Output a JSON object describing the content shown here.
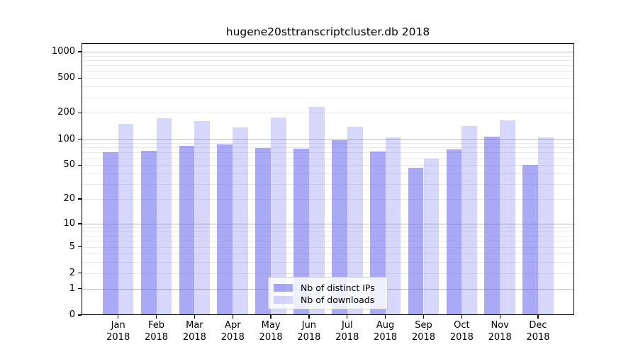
{
  "title": "hugene20sttranscriptcluster.db 2018",
  "legend": {
    "items": [
      {
        "label": "Nb of distinct IPs",
        "color": "rgba(106,106,240,0.58)"
      },
      {
        "label": "Nb of downloads",
        "color": "rgba(106,106,240,0.27)"
      }
    ]
  },
  "axes": {
    "y_tick_labels": [
      "0",
      "1",
      "2",
      "5",
      "10",
      "20",
      "50",
      "100",
      "200",
      "500",
      "1000"
    ],
    "x_months": [
      "Jan",
      "Feb",
      "Mar",
      "Apr",
      "May",
      "Jun",
      "Jul",
      "Aug",
      "Sep",
      "Oct",
      "Nov",
      "Dec"
    ],
    "x_year": "2018"
  },
  "colors": {
    "bar_ips": "rgba(106,106,240,0.58)",
    "bar_downloads": "rgba(106,106,240,0.27)",
    "grid_major": "#b9b9b9",
    "grid_minor": "#e9e9e9",
    "spine": "#000000"
  },
  "chart_data": {
    "type": "bar",
    "title": "hugene20sttranscriptcluster.db 2018",
    "categories": [
      "Jan 2018",
      "Feb 2018",
      "Mar 2018",
      "Apr 2018",
      "May 2018",
      "Jun 2018",
      "Jul 2018",
      "Aug 2018",
      "Sep 2018",
      "Oct 2018",
      "Nov 2018",
      "Dec 2018"
    ],
    "series": [
      {
        "name": "Nb of distinct IPs",
        "values": [
          70,
          73,
          84,
          87,
          79,
          77,
          98,
          72,
          47,
          76,
          107,
          50
        ]
      },
      {
        "name": "Nb of downloads",
        "values": [
          150,
          175,
          162,
          135,
          178,
          232,
          140,
          104,
          60,
          141,
          163,
          104
        ]
      }
    ],
    "xlabel": "",
    "ylabel": "",
    "y_scale": "log10(1+y)",
    "y_ticks": [
      0,
      1,
      2,
      5,
      10,
      20,
      50,
      100,
      200,
      500,
      1000
    ],
    "y_major_gridlines": [
      1,
      10,
      100,
      1000
    ],
    "ylim": [
      0,
      1250
    ],
    "grid": true,
    "legend_position": "lower center (inside plot)"
  }
}
